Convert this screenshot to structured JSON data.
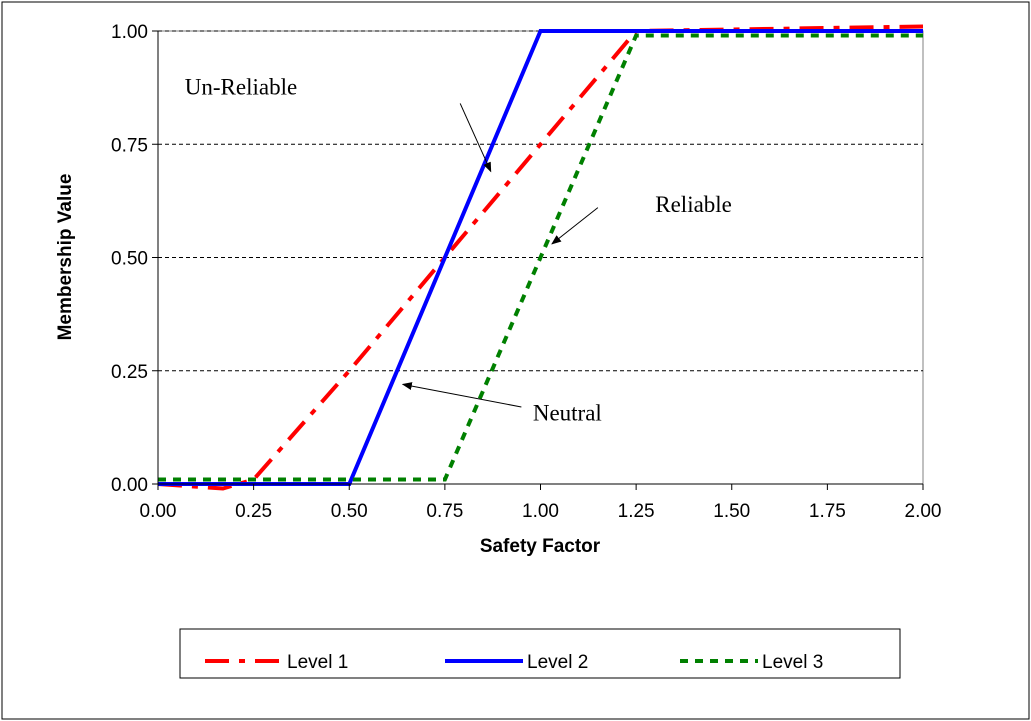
{
  "chart_data": {
    "type": "line",
    "xlabel": "Safety Factor",
    "ylabel": "Membership Value",
    "xlim": [
      0,
      2
    ],
    "ylim": [
      0,
      1
    ],
    "xticks": [
      "0.00",
      "0.25",
      "0.50",
      "0.75",
      "1.00",
      "1.25",
      "1.50",
      "1.75",
      "2.00"
    ],
    "yticks": [
      "0.00",
      "0.25",
      "0.50",
      "0.75",
      "1.00"
    ],
    "grid": "horizontal-dashed",
    "legend_position": "bottom",
    "series": [
      {
        "name": "Level 1",
        "color": "#ff0000",
        "style": "dash-dot",
        "points": [
          [
            0,
            0
          ],
          [
            0.17,
            -0.01
          ],
          [
            0.25,
            0.01
          ],
          [
            0.5,
            0.25
          ],
          [
            0.75,
            0.5
          ],
          [
            1.0,
            0.75
          ],
          [
            1.25,
            1.0
          ],
          [
            2.0,
            1.01
          ]
        ]
      },
      {
        "name": "Level 2",
        "color": "#0000ff",
        "style": "solid",
        "points": [
          [
            0,
            0
          ],
          [
            0.5,
            0
          ],
          [
            1.0,
            1.0
          ],
          [
            2.0,
            1.0
          ]
        ]
      },
      {
        "name": "Level 3",
        "color": "#008000",
        "style": "dotted",
        "points": [
          [
            0,
            0.01
          ],
          [
            0.75,
            0.01
          ],
          [
            1.0,
            0.5
          ],
          [
            1.25,
            0.99
          ],
          [
            2.0,
            0.99
          ]
        ]
      }
    ],
    "annotations": [
      {
        "text": "Un-Reliable",
        "label_at": [
          0.07,
          0.86
        ],
        "arrow_from": [
          0.79,
          0.84
        ],
        "arrow_to": [
          0.87,
          0.69
        ]
      },
      {
        "text": "Reliable",
        "label_at": [
          1.3,
          0.6
        ],
        "arrow_from": [
          1.15,
          0.61
        ],
        "arrow_to": [
          1.03,
          0.53
        ]
      },
      {
        "text": "Neutral",
        "label_at": [
          0.98,
          0.14
        ],
        "arrow_from": [
          0.95,
          0.17
        ],
        "arrow_to": [
          0.64,
          0.22
        ]
      }
    ]
  }
}
